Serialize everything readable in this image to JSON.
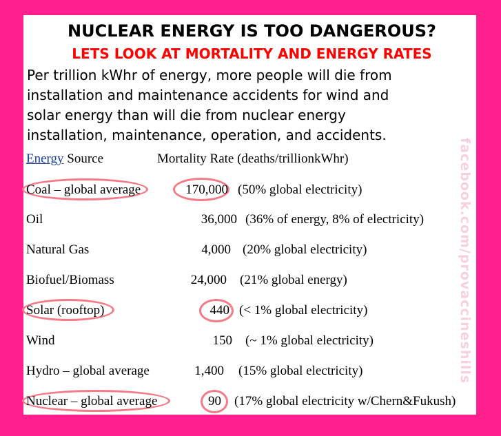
{
  "title": "NUCLEAR ENERGY IS TOO DANGEROUS?",
  "subtitle": "LETS LOOK AT MORTALITY AND ENERGY RATES",
  "intro_lines": [
    "Per trillion kWhr of energy, more people will die from",
    "installation and maintenance accidents for wind and",
    "solar energy than will die from nuclear energy",
    "installation, maintenance, operation, and accidents."
  ],
  "header": {
    "source_link": "Energy",
    "source_rest": " Source",
    "rate": "Mortality Rate (deaths/trillionkWhr)"
  },
  "rows": [
    {
      "source": "Coal – global average",
      "rate": "170,000",
      "note": "(50% global electricity)"
    },
    {
      "source": "Oil",
      "rate": "36,000",
      "note": "(36% of energy, 8% of electricity)"
    },
    {
      "source": "Natural Gas",
      "rate": "4,000",
      "note": "(20% global electricity)"
    },
    {
      "source": "Biofuel/Biomass",
      "rate": "24,000",
      "note": "(21% global energy)"
    },
    {
      "source": "Solar (rooftop)",
      "rate": "440",
      "note": "(< 1% global electricity)"
    },
    {
      "source": "Wind",
      "rate": "150",
      "note": "(~ 1% global electricity)"
    },
    {
      "source": "Hydro – global average",
      "rate": "1,400",
      "note": "(15% global electricity)"
    },
    {
      "source": "Nuclear – global average",
      "rate": "90",
      "note": "(17%  global electricity w/Chern&Fukush)"
    }
  ],
  "watermark": "facebook.com/provaccineshills",
  "colors": {
    "background": "#ff1f8e",
    "highlight_oval": "#f47a87",
    "subtitle": "#ff0000",
    "link": "#1a3e9a"
  }
}
